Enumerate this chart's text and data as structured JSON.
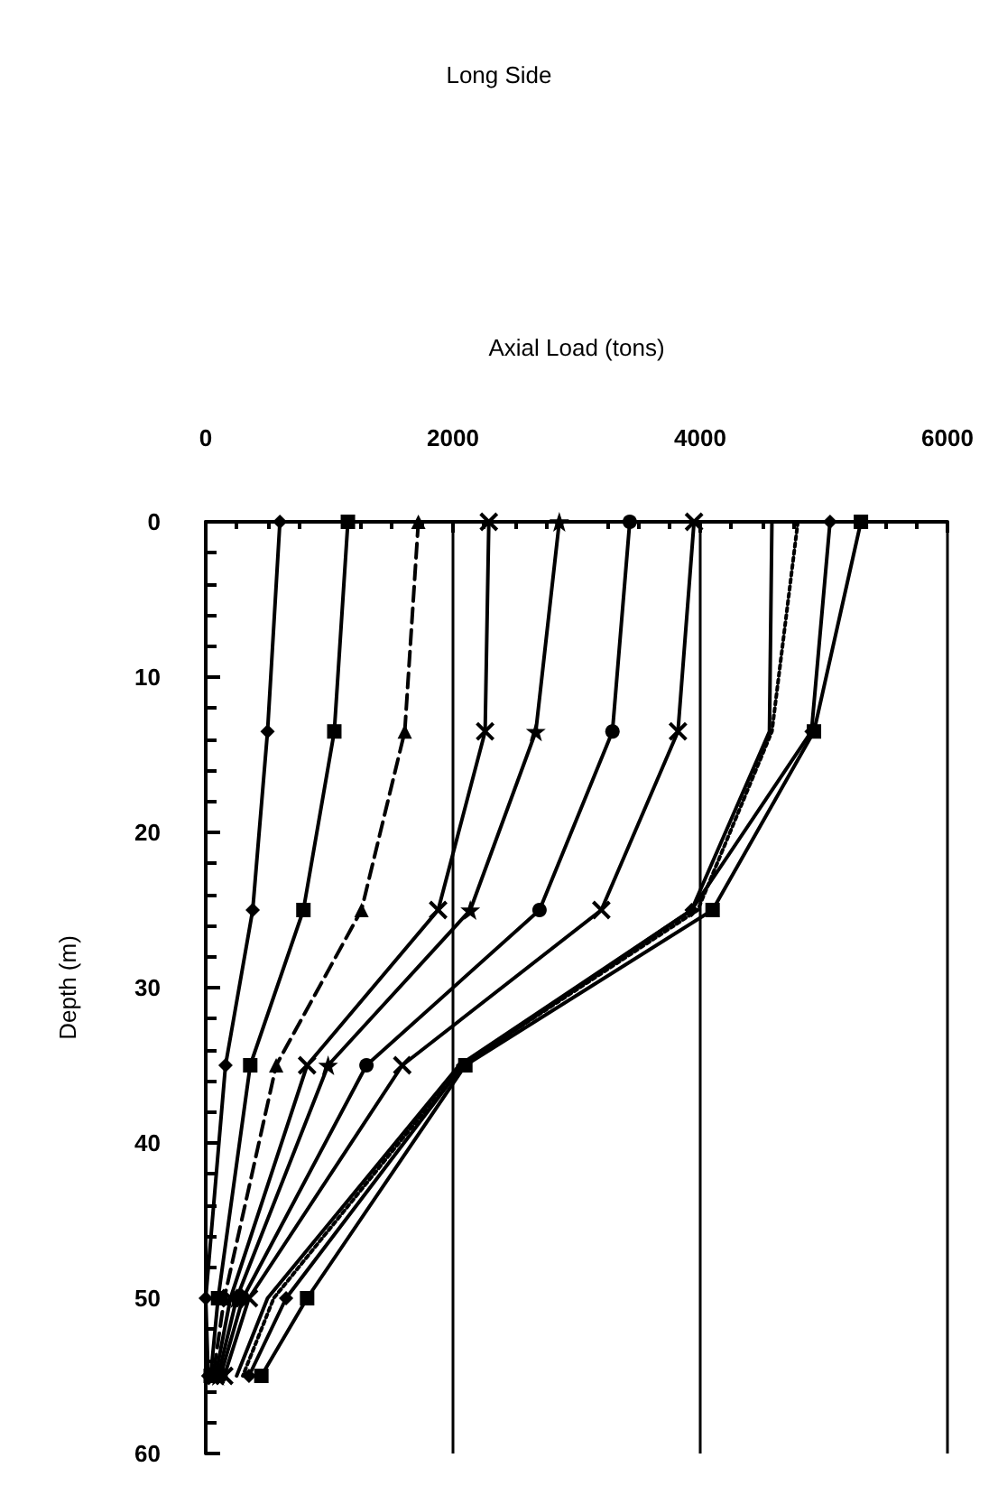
{
  "chart_data": {
    "type": "line",
    "title": "Long Side",
    "xlabel": "Axial Load (tons)",
    "ylabel": "Depth (m)",
    "orientation": "horizontal",
    "x": [
      0,
      13.5,
      25,
      35,
      50,
      55
    ],
    "xlim": [
      0,
      6000
    ],
    "xticks": [
      0,
      2000,
      4000,
      6000
    ],
    "ylim": [
      60,
      0
    ],
    "yticks": [
      0,
      10,
      20,
      30,
      40,
      50,
      60
    ],
    "grid": "x",
    "series": [
      {
        "color": "#000000",
        "marker": "diamond",
        "line_style": "solid",
        "values": [
          600,
          500,
          380,
          160,
          0,
          20
        ]
      },
      {
        "color": "#000000",
        "marker": "square",
        "line_style": "solid",
        "values": [
          1150,
          1040,
          790,
          360,
          100,
          40
        ]
      },
      {
        "color": "#000000",
        "marker": "triangle",
        "line_style": "dashed",
        "values": [
          1720,
          1610,
          1260,
          570,
          150,
          60
        ]
      },
      {
        "color": "#000000",
        "marker": "cross",
        "line_style": "solid",
        "values": [
          2290,
          2260,
          1880,
          820,
          200,
          80
        ]
      },
      {
        "color": "#000000",
        "marker": "star",
        "line_style": "solid",
        "values": [
          2860,
          2670,
          2140,
          990,
          250,
          100
        ]
      },
      {
        "color": "#000000",
        "marker": "circle",
        "line_style": "solid",
        "values": [
          3430,
          3290,
          2700,
          1300,
          300,
          120
        ]
      },
      {
        "color": "#000000",
        "marker": "cross",
        "line_style": "solid",
        "values": [
          3950,
          3820,
          3200,
          1590,
          350,
          150
        ]
      },
      {
        "color": "#000000",
        "marker": "none",
        "line_style": "solid",
        "values": [
          4580,
          4560,
          3930,
          2050,
          500,
          250
        ]
      },
      {
        "color": "#000000",
        "marker": "none",
        "line_style": "dotted",
        "values": [
          4790,
          4580,
          3980,
          2070,
          550,
          300
        ]
      },
      {
        "color": "#000000",
        "marker": "diamond",
        "line_style": "solid",
        "values": [
          5050,
          4900,
          3930,
          2080,
          650,
          350
        ]
      },
      {
        "color": "#000000",
        "marker": "square",
        "line_style": "solid",
        "values": [
          5300,
          4920,
          4100,
          2100,
          820,
          450
        ]
      }
    ]
  }
}
